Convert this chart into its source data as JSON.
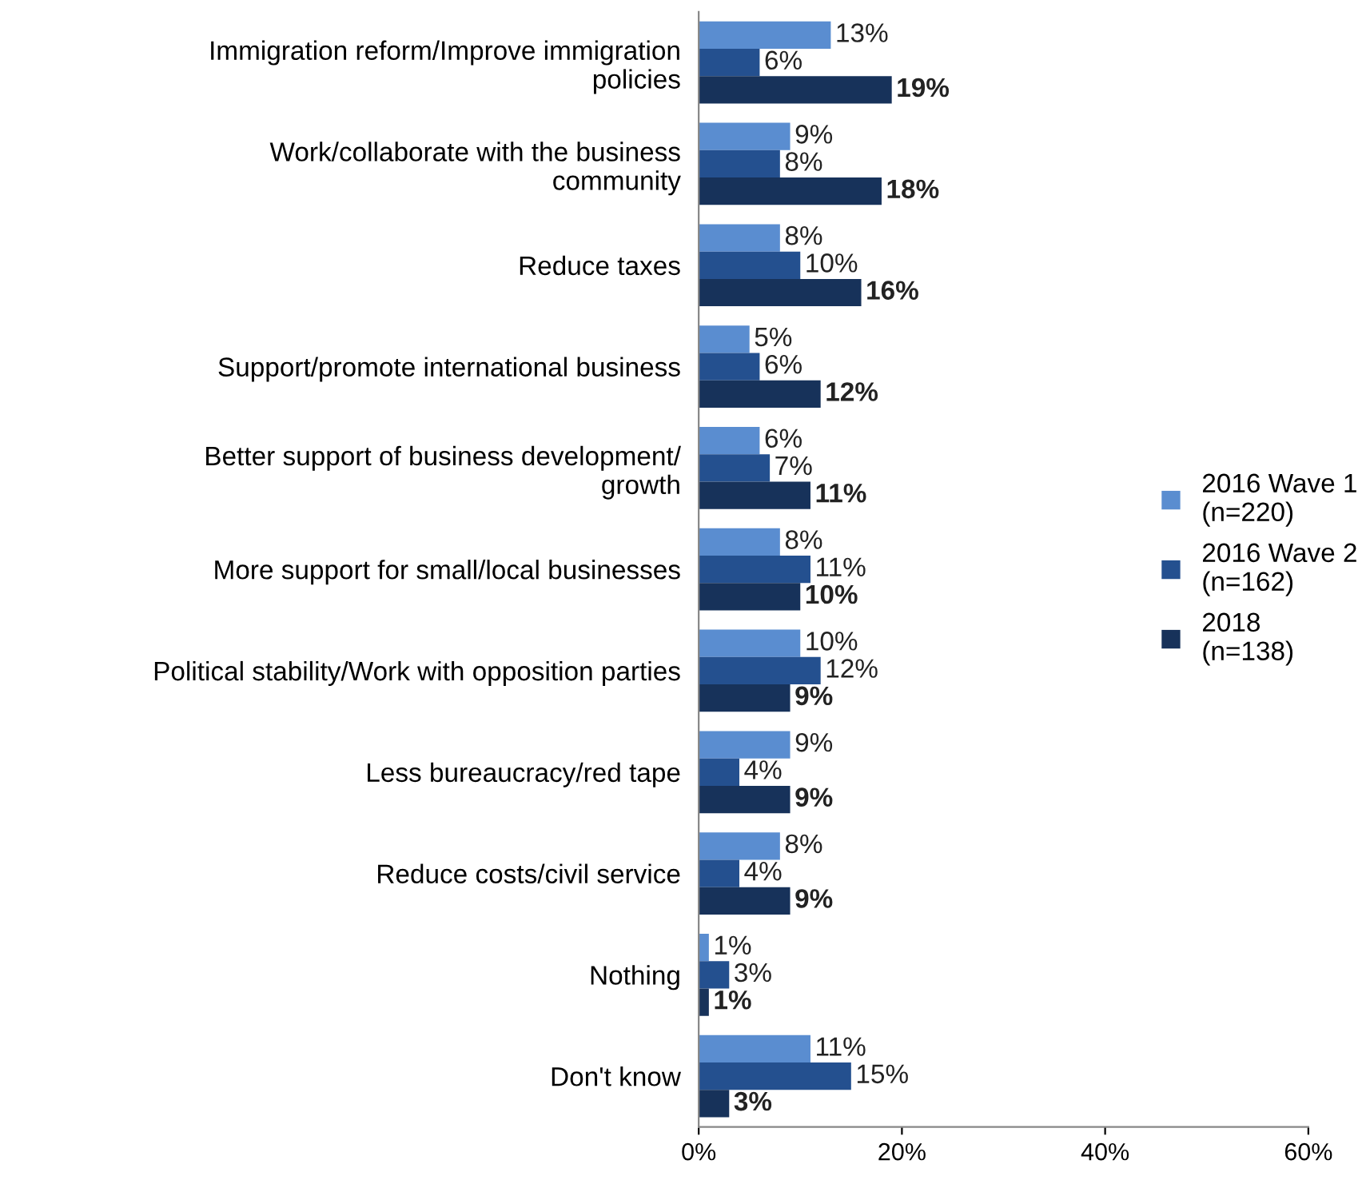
{
  "chart_data": {
    "type": "bar",
    "orientation": "horizontal",
    "categories": [
      "Immigration reform/Improve immigration\npolicies",
      "Work/collaborate with the business\ncommunity",
      "Reduce taxes",
      "Support/promote international business",
      "Better support of business development/\ngrowth",
      "More support for small/local businesses",
      "Political stability/Work with opposition parties",
      "Less bureaucracy/red tape",
      "Reduce costs/civil service",
      "Nothing",
      "Don't know"
    ],
    "series": [
      {
        "name": "2016 Wave 1\n(n=220)",
        "color": "#5a8dd0",
        "values": [
          13,
          9,
          8,
          5,
          6,
          8,
          10,
          9,
          8,
          1,
          11
        ],
        "value_labels": [
          "13%",
          "9%",
          "8%",
          "5%",
          "6%",
          "8%",
          "10%",
          "9%",
          "8%",
          "1%",
          "11%"
        ]
      },
      {
        "name": "2016 Wave 2\n(n=162)",
        "color": "#24508f",
        "values": [
          6,
          8,
          10,
          6,
          7,
          11,
          12,
          4,
          4,
          3,
          15
        ],
        "value_labels": [
          "6%",
          "8%",
          "10%",
          "6%",
          "7%",
          "11%",
          "12%",
          "4%",
          "4%",
          "3%",
          "15%"
        ]
      },
      {
        "name": "2018\n(n=138)",
        "color": "#17325a",
        "values": [
          19,
          18,
          16,
          12,
          11,
          10,
          9,
          9,
          9,
          1,
          3
        ],
        "value_labels": [
          "19%",
          "18%",
          "16%",
          "12%",
          "11%",
          "10%",
          "9%",
          "9%",
          "9%",
          "1%",
          "3%"
        ]
      }
    ],
    "xlim": [
      0,
      60
    ],
    "xticks": [
      {
        "value": 0,
        "label": "0%"
      },
      {
        "value": 20,
        "label": "20%"
      },
      {
        "value": 40,
        "label": "40%"
      },
      {
        "value": 60,
        "label": "60%"
      }
    ],
    "grid": false,
    "legend": "right"
  }
}
